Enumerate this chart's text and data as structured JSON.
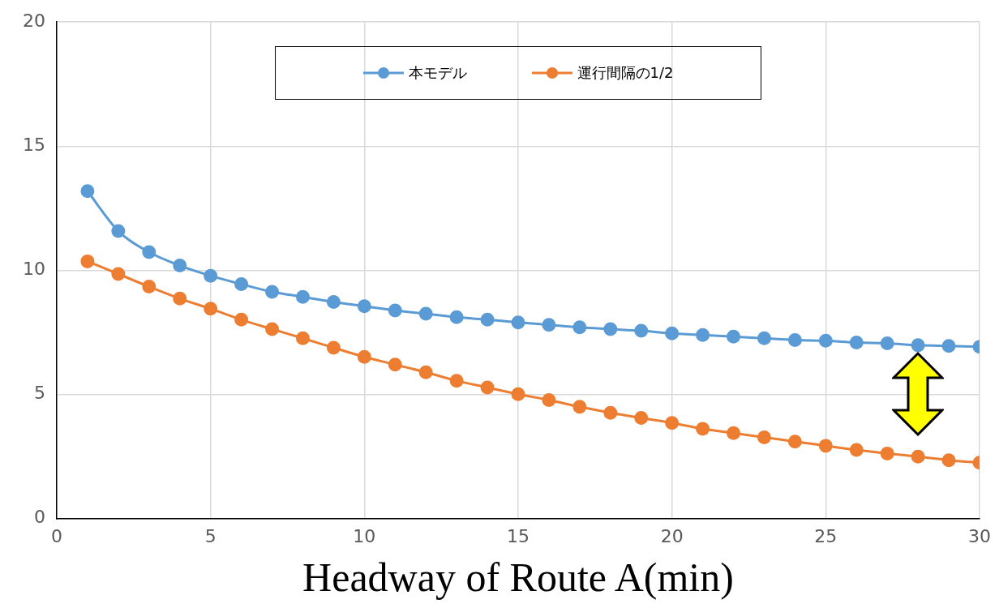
{
  "chart_data": {
    "type": "line",
    "xlabel": "Headway of Route A(min)",
    "x": [
      1,
      2,
      3,
      4,
      5,
      6,
      7,
      8,
      9,
      10,
      11,
      12,
      13,
      14,
      15,
      16,
      17,
      18,
      19,
      20,
      21,
      22,
      23,
      24,
      25,
      26,
      27,
      28,
      29,
      30
    ],
    "series": [
      {
        "name": "本モデル",
        "color": "#5b9bd5",
        "values": [
          13.19,
          11.58,
          10.73,
          10.19,
          9.78,
          9.44,
          9.13,
          8.93,
          8.72,
          8.55,
          8.38,
          8.25,
          8.11,
          8.01,
          7.9,
          7.8,
          7.7,
          7.63,
          7.56,
          7.46,
          7.39,
          7.33,
          7.26,
          7.19,
          7.16,
          7.09,
          7.06,
          6.98,
          6.95,
          6.92
        ]
      },
      {
        "name": "運行間隔の1/2",
        "color": "#ed7d31",
        "values": [
          10.36,
          9.85,
          9.34,
          8.86,
          8.45,
          8.01,
          7.63,
          7.26,
          6.88,
          6.51,
          6.2,
          5.89,
          5.55,
          5.28,
          5.01,
          4.77,
          4.5,
          4.26,
          4.05,
          3.85,
          3.61,
          3.44,
          3.27,
          3.1,
          2.93,
          2.76,
          2.62,
          2.49,
          2.35,
          2.25
        ]
      }
    ],
    "xlim": [
      0,
      30
    ],
    "xticks": [
      0,
      5,
      10,
      15,
      20,
      25,
      30
    ],
    "ylim": [
      0,
      20
    ],
    "yticks": [
      0,
      5,
      10,
      15,
      20
    ],
    "grid": true,
    "legend": "top",
    "marker": "circle",
    "line_style": "solid"
  }
}
